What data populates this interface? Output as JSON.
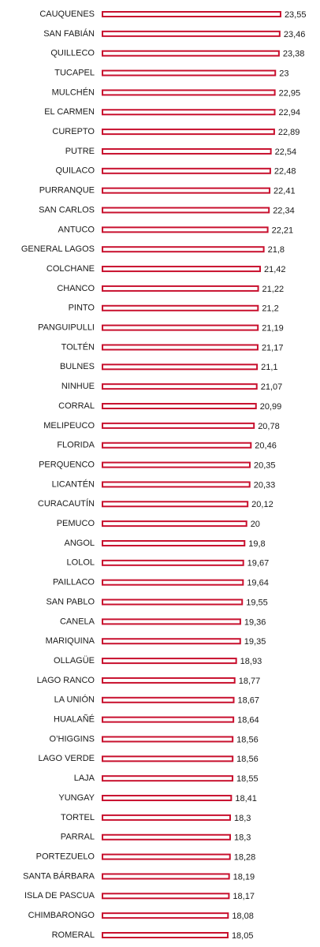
{
  "chart_data": {
    "type": "barh",
    "color": "#c8102e",
    "xlim": [
      5,
      25
    ],
    "categories": [
      "CAUQUENES",
      "SAN FABIÁN",
      "QUILLECO",
      "TUCAPEL",
      "MULCHÉN",
      "EL CARMEN",
      "CUREPTO",
      "PUTRE",
      "QUILACO",
      "PURRANQUE",
      "SAN CARLOS",
      "ANTUCO",
      "GENERAL LAGOS",
      "COLCHANE",
      "CHANCO",
      "PINTO",
      "PANGUIPULLI",
      "TOLTÉN",
      "BULNES",
      "NINHUE",
      "CORRAL",
      "MELIPEUCO",
      "FLORIDA",
      "PERQUENCO",
      "LICANTÉN",
      "CURACAUTÍN",
      "PEMUCO",
      "ANGOL",
      "LOLOL",
      "PAILLACO",
      "SAN PABLO",
      "CANELA",
      "MARIQUINA",
      "OLLAGÜE",
      "LAGO RANCO",
      "LA UNIÓN",
      "HUALAÑÉ",
      "O’HIGGINS",
      "LAGO VERDE",
      "LAJA",
      "YUNGAY",
      "TORTEL",
      "PARRAL",
      "PORTEZUELO",
      "SANTA BÁRBARA",
      "ISLA DE PASCUA",
      "CHIMBARONGO",
      "ROMERAL"
    ],
    "values": [
      23.55,
      23.46,
      23.38,
      23,
      22.95,
      22.94,
      22.89,
      22.54,
      22.48,
      22.41,
      22.34,
      22.21,
      21.8,
      21.42,
      21.22,
      21.2,
      21.19,
      21.17,
      21.1,
      21.07,
      20.99,
      20.78,
      20.46,
      20.35,
      20.33,
      20.12,
      20,
      19.8,
      19.67,
      19.64,
      19.55,
      19.36,
      19.35,
      18.93,
      18.77,
      18.67,
      18.64,
      18.56,
      18.56,
      18.55,
      18.41,
      18.3,
      18.3,
      18.28,
      18.19,
      18.17,
      18.08,
      18.05
    ],
    "value_labels": [
      "23,55",
      "23,46",
      "23,38",
      "23",
      "22,95",
      "22,94",
      "22,89",
      "22,54",
      "22,48",
      "22,41",
      "22,34",
      "22,21",
      "21,8",
      "21,42",
      "21,22",
      "21,2",
      "21,19",
      "21,17",
      "21,1",
      "21,07",
      "20,99",
      "20,78",
      "20,46",
      "20,35",
      "20,33",
      "20,12",
      "20",
      "19,8",
      "19,67",
      "19,64",
      "19,55",
      "19,36",
      "19,35",
      "18,93",
      "18,77",
      "18,67",
      "18,64",
      "18,56",
      "18,56",
      "18,55",
      "18,41",
      "18,3",
      "18,3",
      "18,28",
      "18,19",
      "18,17",
      "18,08",
      "18,05"
    ]
  }
}
